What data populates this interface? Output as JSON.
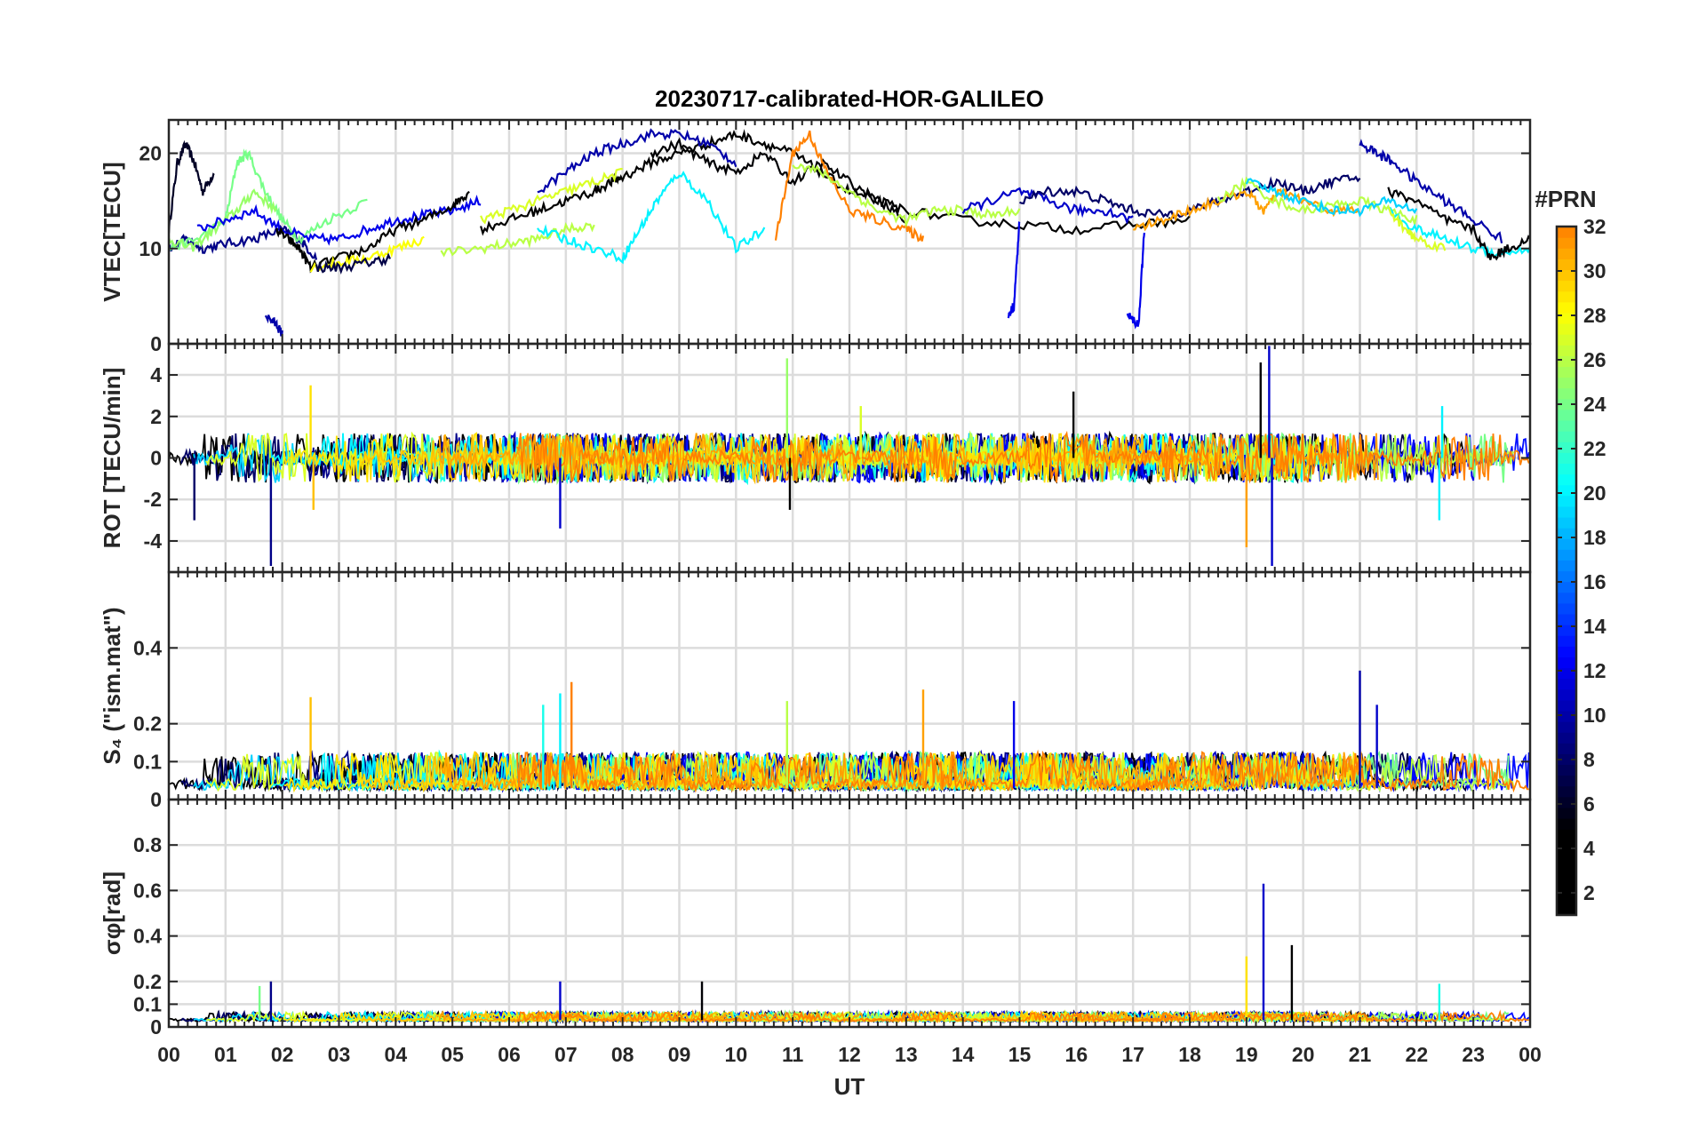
{
  "chart_data": {
    "type": "line",
    "title": "20230717-calibrated-HOR-GALILEO",
    "xlabel": "UT",
    "x_tick_labels": [
      "00",
      "01",
      "02",
      "03",
      "04",
      "05",
      "06",
      "07",
      "08",
      "09",
      "10",
      "11",
      "12",
      "13",
      "14",
      "15",
      "16",
      "17",
      "18",
      "19",
      "20",
      "21",
      "22",
      "23",
      "00"
    ],
    "xlim": [
      0,
      24
    ],
    "grid": true,
    "colorbar": {
      "title": "#PRN",
      "range": [
        1,
        32
      ],
      "tick_labels": [
        "2",
        "4",
        "6",
        "8",
        "10",
        "12",
        "14",
        "16",
        "18",
        "20",
        "22",
        "24",
        "26",
        "28",
        "30",
        "32"
      ],
      "colormap": "jet"
    },
    "panels": [
      {
        "name": "vtec",
        "ylabel": "VTEC[TECU]",
        "ylim": [
          0,
          23.5
        ],
        "yticks": [
          0,
          10,
          20
        ],
        "series": [
          {
            "prn": 6,
            "x": [
              0.0,
              0.15,
              0.3,
              0.45,
              0.6,
              0.8
            ],
            "y": [
              12,
              19,
              21,
              19,
              16,
              18
            ]
          },
          {
            "prn": 9,
            "x": [
              0.0,
              0.3,
              0.6,
              1.0,
              1.5,
              2.0,
              2.3,
              2.6
            ],
            "y": [
              10,
              11,
              10,
              10.5,
              11,
              12,
              11,
              9
            ]
          },
          {
            "prn": 24,
            "x": [
              0.0,
              0.5,
              1.0,
              1.2,
              1.4,
              1.7,
              2.0,
              2.3,
              2.8,
              3.5
            ],
            "y": [
              10,
              11,
              13,
              19,
              20,
              16,
              13,
              11,
              13,
              15
            ]
          },
          {
            "prn": 25,
            "x": [
              0.0,
              0.4,
              0.8,
              1.2,
              1.5,
              1.9
            ],
            "y": [
              11,
              10,
              12,
              14,
              16,
              14
            ]
          },
          {
            "prn": 12,
            "x": [
              0.5,
              1.0,
              1.5,
              2.0,
              2.5,
              3.0,
              3.5,
              4.0,
              4.5,
              5.0,
              5.5
            ],
            "y": [
              12,
              13,
              14,
              12,
              11,
              11,
              12,
              13,
              13.5,
              14,
              15
            ]
          },
          {
            "prn": 10,
            "x": [
              1.7,
              1.9,
              2.0
            ],
            "y": [
              3,
              2,
              1
            ]
          },
          {
            "prn": 4,
            "x": [
              1.9,
              2.1,
              2.3,
              2.5,
              3.0,
              3.5,
              4.0,
              4.5,
              5.0,
              5.3
            ],
            "y": [
              12,
              11,
              10,
              8,
              9,
              10,
              12,
              13,
              14.5,
              16
            ]
          },
          {
            "prn": 28,
            "x": [
              2.5,
              3.0,
              3.5,
              4.0,
              4.5
            ],
            "y": [
              8,
              8.5,
              9,
              10,
              11
            ]
          },
          {
            "prn": 7,
            "x": [
              2.6,
              3.0,
              3.5,
              3.9
            ],
            "y": [
              8,
              8,
              8.5,
              9
            ]
          },
          {
            "prn": 26,
            "x": [
              4.8,
              5.5,
              6.0,
              6.5,
              7.0,
              7.5
            ],
            "y": [
              9.5,
              10,
              10.5,
              11,
              12,
              12.5
            ]
          },
          {
            "prn": 3,
            "x": [
              5.5,
              6.0,
              6.5,
              7.0,
              7.5,
              7.8,
              8.0,
              8.5,
              9.0,
              9.5,
              10.0,
              10.5,
              11.0,
              11.5,
              12.0,
              12.5,
              13.0,
              14.0,
              15.0,
              16.0,
              17.0,
              18.0
            ],
            "y": [
              12,
              13,
              14,
              15,
              16,
              17,
              17.5,
              19,
              20,
              21,
              22,
              21,
              20,
              18,
              16,
              15,
              14,
              13,
              12.5,
              12,
              12.5,
              13
            ]
          },
          {
            "prn": 27,
            "x": [
              5.5,
              6.0,
              6.5,
              7.0,
              7.5,
              8.0
            ],
            "y": [
              13,
              14,
              15,
              16,
              17,
              18
            ]
          },
          {
            "prn": 10,
            "x": [
              6.5,
              7.0,
              7.5,
              8.0,
              8.5,
              9.0,
              9.5,
              10.0
            ],
            "y": [
              16,
              18,
              20,
              21,
              22,
              22,
              21,
              19
            ]
          },
          {
            "prn": 20,
            "x": [
              6.5,
              7.0,
              7.5,
              8.0,
              8.3,
              8.6,
              9.0,
              9.5,
              10.0,
              10.5
            ],
            "y": [
              12,
              11,
              10,
              9,
              12,
              15,
              18,
              15,
              10,
              12
            ]
          },
          {
            "prn": 5,
            "x": [
              8.5,
              9.0,
              9.5,
              10.0,
              10.5,
              11.0,
              11.5,
              12.0,
              12.5,
              13.0
            ],
            "y": [
              20,
              21,
              19,
              18,
              20,
              17,
              19,
              17,
              15,
              13
            ]
          },
          {
            "prn": 32,
            "x": [
              10.7,
              11.0,
              11.3,
              11.6,
              12.0,
              12.5,
              13.0,
              13.3
            ],
            "y": [
              11,
              20,
              22,
              18,
              14,
              13,
              12,
              11
            ]
          },
          {
            "prn": 26,
            "x": [
              11.0,
              11.5,
              12.0,
              12.5,
              13.0,
              13.5,
              14.0,
              14.5,
              15.0
            ],
            "y": [
              19,
              18,
              16,
              14,
              13,
              14,
              14,
              13.5,
              14
            ]
          },
          {
            "prn": 11,
            "x": [
              14.0,
              14.5,
              15.0,
              15.5,
              16.0,
              16.5,
              17.0
            ],
            "y": [
              14,
              15,
              16,
              15,
              14,
              14,
              13
            ]
          },
          {
            "prn": 12,
            "x": [
              14.8,
              14.9,
              15.0
            ],
            "y": [
              3,
              4,
              13
            ]
          },
          {
            "prn": 12,
            "x": [
              16.9,
              17.1,
              17.2
            ],
            "y": [
              3,
              2,
              12
            ]
          },
          {
            "prn": 8,
            "x": [
              15.0,
              15.5,
              16.0,
              16.5,
              17.0,
              17.5,
              18.0,
              18.5,
              19.0,
              19.5,
              20.0,
              20.5,
              21.0
            ],
            "y": [
              15,
              16,
              16,
              15,
              14,
              13.5,
              14,
              15,
              16,
              17,
              16,
              17,
              17.5
            ]
          },
          {
            "prn": 31,
            "x": [
              17.0,
              17.5,
              18.0,
              18.5,
              19.0,
              19.3,
              19.6,
              20.0,
              20.5,
              21.0
            ],
            "y": [
              12,
              13,
              14,
              15,
              16,
              14,
              16,
              15,
              14,
              14
            ]
          },
          {
            "prn": 26,
            "x": [
              18.5,
              19.0,
              19.5,
              20.0,
              20.5,
              21.0,
              21.5,
              22.0
            ],
            "y": [
              15,
              17,
              15,
              14,
              14.5,
              15,
              14,
              13
            ]
          },
          {
            "prn": 19,
            "x": [
              19.0,
              19.5,
              20.0,
              20.5,
              21.0,
              21.5,
              22.0
            ],
            "y": [
              17,
              16,
              15,
              14,
              14,
              15,
              14
            ]
          },
          {
            "prn": 10,
            "x": [
              21.0,
              21.3,
              21.6,
              22.0,
              22.5,
              23.0,
              23.5
            ],
            "y": [
              21,
              20,
              19,
              17,
              15,
              13,
              11
            ]
          },
          {
            "prn": 20,
            "x": [
              21.5,
              22.0,
              22.5,
              23.0,
              23.5,
              24.0
            ],
            "y": [
              14,
              12,
              11,
              10,
              9.5,
              10
            ]
          },
          {
            "prn": 5,
            "x": [
              21.5,
              22.0,
              22.5,
              23.0,
              23.3,
              23.6,
              24.0
            ],
            "y": [
              16,
              15,
              13,
              12,
              9,
              10,
              11
            ]
          },
          {
            "prn": 27,
            "x": [
              21.5,
              21.8,
              22.0,
              22.5
            ],
            "y": [
              14,
              12,
              11,
              10
            ]
          }
        ]
      },
      {
        "name": "rot",
        "ylabel": "ROT [TECU/min]",
        "ylim": [
          -5.5,
          5.5
        ],
        "yticks": [
          -4,
          -2,
          0,
          2,
          4
        ],
        "spikes": [
          {
            "prn": 29,
            "x": 2.5,
            "y": 3.5
          },
          {
            "prn": 30,
            "x": 2.55,
            "y": -2.5
          },
          {
            "prn": 9,
            "x": 1.8,
            "y": -5.2
          },
          {
            "prn": 8,
            "x": 0.45,
            "y": -3
          },
          {
            "prn": 11,
            "x": 6.9,
            "y": -3.4
          },
          {
            "prn": 25,
            "x": 10.9,
            "y": 4.8
          },
          {
            "prn": 3,
            "x": 10.95,
            "y": -2.5
          },
          {
            "prn": 27,
            "x": 12.2,
            "y": 2.5
          },
          {
            "prn": 3,
            "x": 15.95,
            "y": 3.2
          },
          {
            "prn": 31,
            "x": 19.0,
            "y": -4.3
          },
          {
            "prn": 5,
            "x": 19.25,
            "y": 4.6
          },
          {
            "prn": 11,
            "x": 19.4,
            "y": 5.4
          },
          {
            "prn": 11,
            "x": 19.45,
            "y": -5.2
          },
          {
            "prn": 20,
            "x": 22.4,
            "y": -3
          },
          {
            "prn": 20,
            "x": 22.45,
            "y": 2.5
          }
        ]
      },
      {
        "name": "s4",
        "ylabel": "S₄ (\"ism.mat\")",
        "ylim": [
          0,
          0.6
        ],
        "yticks": [
          0,
          0.1,
          0.2,
          0.4
        ],
        "spikes": [
          {
            "prn": 30,
            "x": 2.5,
            "y": 0.27
          },
          {
            "prn": 21,
            "x": 6.6,
            "y": 0.25
          },
          {
            "prn": 20,
            "x": 6.9,
            "y": 0.28
          },
          {
            "prn": 32,
            "x": 7.1,
            "y": 0.31
          },
          {
            "prn": 26,
            "x": 10.9,
            "y": 0.26
          },
          {
            "prn": 31,
            "x": 13.3,
            "y": 0.29
          },
          {
            "prn": 12,
            "x": 14.9,
            "y": 0.26
          },
          {
            "prn": 10,
            "x": 21.0,
            "y": 0.34
          },
          {
            "prn": 11,
            "x": 21.3,
            "y": 0.25
          }
        ]
      },
      {
        "name": "sigma_phi",
        "ylabel": "σφ[rad]",
        "ylim": [
          0,
          1.0
        ],
        "yticks": [
          0,
          0.1,
          0.2,
          0.4,
          0.6,
          0.8
        ],
        "spikes": [
          {
            "prn": 24,
            "x": 1.6,
            "y": 0.18
          },
          {
            "prn": 9,
            "x": 1.8,
            "y": 0.2
          },
          {
            "prn": 11,
            "x": 6.9,
            "y": 0.2
          },
          {
            "prn": 5,
            "x": 9.4,
            "y": 0.2
          },
          {
            "prn": 29,
            "x": 19.0,
            "y": 0.31
          },
          {
            "prn": 11,
            "x": 19.3,
            "y": 0.63
          },
          {
            "prn": 3,
            "x": 19.8,
            "y": 0.36
          },
          {
            "prn": 21,
            "x": 22.4,
            "y": 0.19
          }
        ]
      }
    ]
  }
}
